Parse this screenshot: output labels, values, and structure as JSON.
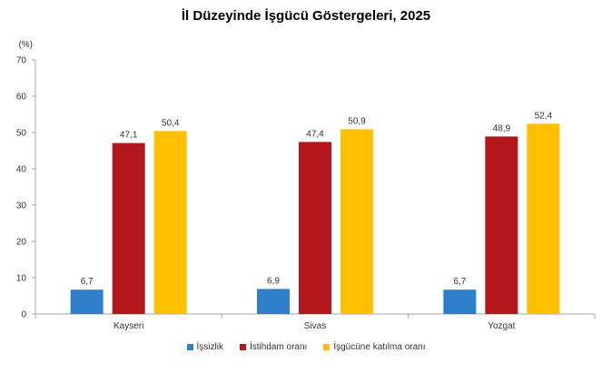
{
  "chart_data": {
    "type": "bar",
    "title": "İl Düzeyinde İşgücü Göstergeleri, 2025",
    "ylabel": "(%)",
    "xlabel": "",
    "categories": [
      "Kayseri",
      "Sivas",
      "Yozgat"
    ],
    "series": [
      {
        "name": "İşsizlik",
        "values": [
          6.7,
          6.9,
          6.7
        ],
        "labels": [
          "6,7",
          "6,9",
          "6,7"
        ],
        "color": "#2E7FC9"
      },
      {
        "name": "İstihdam oranı",
        "values": [
          47.1,
          47.4,
          48.9
        ],
        "labels": [
          "47,1",
          "47,4",
          "48,9"
        ],
        "color": "#B2171B"
      },
      {
        "name": "İşgücüne katılma oranı",
        "values": [
          50.4,
          50.9,
          52.4
        ],
        "labels": [
          "50,4",
          "50,9",
          "52,4"
        ],
        "color": "#FFC000"
      }
    ],
    "ylim": [
      0,
      70
    ],
    "yticks": [
      "0",
      "10",
      "20",
      "30",
      "40",
      "50",
      "60",
      "70"
    ],
    "grid": false,
    "legend": "bottom"
  }
}
